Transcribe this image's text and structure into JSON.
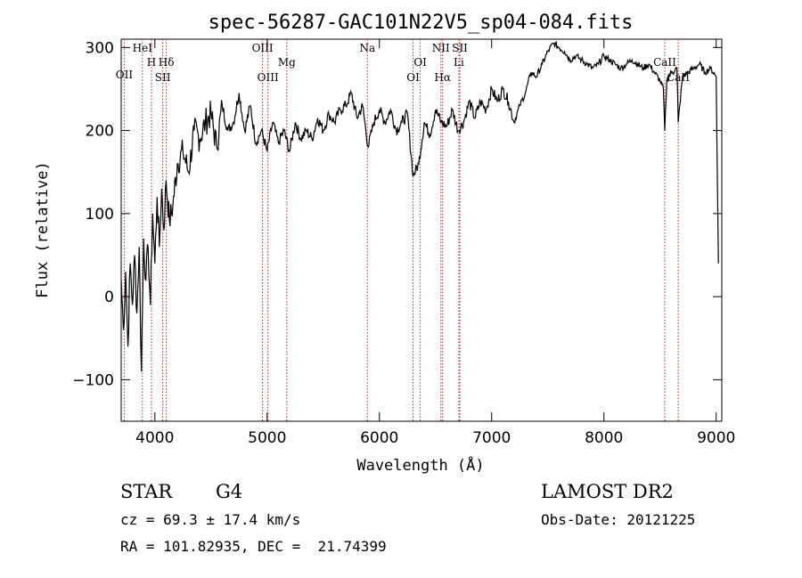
{
  "chart_data": {
    "type": "line",
    "title": "spec-56287-GAC101N22V5_sp04-084.fits",
    "xlabel": "Wavelength (Å)",
    "ylabel": "Flux (relative)",
    "xlim": [
      3700,
      9050
    ],
    "ylim": [
      -150,
      310
    ],
    "xticks": [
      4000,
      5000,
      6000,
      7000,
      8000,
      9000
    ],
    "yticks": [
      -100,
      0,
      100,
      200,
      300
    ],
    "grid": false,
    "series": [
      {
        "x": [
          3700,
          3720,
          3740,
          3760,
          3780,
          3800,
          3820,
          3840,
          3860,
          3880,
          3900,
          3920,
          3940,
          3960,
          3980,
          4000,
          4020,
          4040,
          4060,
          4080,
          4100,
          4130,
          4160,
          4200,
          4250,
          4300,
          4350,
          4400,
          4450,
          4500,
          4550,
          4600,
          4650,
          4700,
          4750,
          4800,
          4850,
          4900,
          4950,
          5000,
          5050,
          5100,
          5150,
          5200,
          5250,
          5300,
          5350,
          5400,
          5450,
          5500,
          5550,
          5600,
          5650,
          5700,
          5750,
          5800,
          5850,
          5900,
          5950,
          6000,
          6050,
          6100,
          6150,
          6200,
          6250,
          6300,
          6350,
          6400,
          6450,
          6500,
          6550,
          6600,
          6650,
          6700,
          6750,
          6800,
          6850,
          6900,
          6950,
          7000,
          7050,
          7100,
          7150,
          7200,
          7250,
          7300,
          7350,
          7400,
          7450,
          7500,
          7550,
          7600,
          7650,
          7700,
          7750,
          7800,
          7850,
          7900,
          7950,
          8000,
          8050,
          8100,
          8150,
          8200,
          8250,
          8300,
          8350,
          8400,
          8450,
          8500,
          8530,
          8542,
          8560,
          8600,
          8650,
          8662,
          8700,
          8750,
          8800,
          8850,
          8900,
          8950,
          9000,
          9020
        ],
        "y": [
          20,
          -40,
          30,
          -60,
          40,
          -10,
          50,
          -20,
          60,
          -90,
          70,
          20,
          60,
          -10,
          100,
          40,
          120,
          60,
          130,
          80,
          140,
          90,
          110,
          160,
          175,
          150,
          200,
          190,
          210,
          220,
          180,
          230,
          200,
          210,
          245,
          200,
          230,
          185,
          200,
          175,
          210,
          185,
          200,
          175,
          210,
          190,
          200,
          190,
          215,
          200,
          220,
          210,
          225,
          230,
          245,
          215,
          230,
          180,
          210,
          225,
          210,
          225,
          200,
          210,
          220,
          145,
          160,
          210,
          195,
          225,
          210,
          205,
          225,
          200,
          210,
          235,
          215,
          235,
          225,
          250,
          235,
          250,
          235,
          210,
          230,
          245,
          270,
          265,
          280,
          295,
          305,
          300,
          295,
          285,
          290,
          285,
          280,
          275,
          280,
          290,
          285,
          280,
          275,
          280,
          285,
          280,
          275,
          280,
          270,
          260,
          250,
          200,
          260,
          270,
          275,
          210,
          265,
          270,
          275,
          280,
          270,
          275,
          265,
          40
        ]
      }
    ],
    "line_marks": [
      {
        "label": "OII",
        "x": 3727
      },
      {
        "label": "HeI",
        "x": 3889
      },
      {
        "label": "H",
        "x": 3970
      },
      {
        "label": "Hδ",
        "x": 4102
      },
      {
        "label": "SII",
        "x": 4070
      },
      {
        "label": "OIII",
        "x": 4959
      },
      {
        "label": "OIII",
        "x": 5007
      },
      {
        "label": "Mg",
        "x": 5175
      },
      {
        "label": "Na",
        "x": 5893
      },
      {
        "label": "OI",
        "x": 6300
      },
      {
        "label": "OI",
        "x": 6364
      },
      {
        "label": "Hα",
        "x": 6563
      },
      {
        "label": "NII",
        "x": 6548
      },
      {
        "label": "Li",
        "x": 6708
      },
      {
        "label": "SII",
        "x": 6717
      },
      {
        "label": "CaII",
        "x": 8542
      },
      {
        "label": "CaII",
        "x": 8662
      }
    ],
    "colors": {
      "spectrum": "#000000",
      "line_marks": "#b03030"
    }
  },
  "info": {
    "class_label": "STAR",
    "subclass_label": "G4",
    "survey": "LAMOST DR2",
    "redshift": "cz = 69.3 ± 17.4 km/s",
    "obs_date": "Obs-Date: 20121225",
    "coords": "RA = 101.82935, DEC =  21.74399"
  }
}
